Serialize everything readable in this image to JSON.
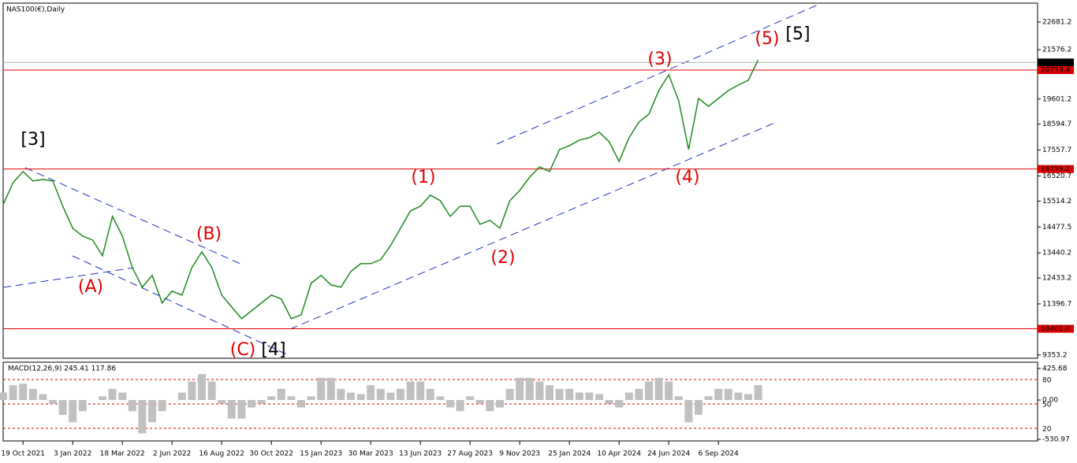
{
  "chart_data": [
    {
      "type": "line",
      "title": "NAS100(€),Daily",
      "categories": [
        null,
        null,
        "19 Oct 2021",
        null,
        null,
        null,
        null,
        "3 Jan 2022",
        null,
        null,
        null,
        null,
        "18 Mar 2022",
        null,
        null,
        null,
        null,
        "2 Jun 2022",
        null,
        null,
        null,
        null,
        "16 Aug 2022",
        null,
        null,
        null,
        null,
        "30 Oct 2022",
        null,
        null,
        null,
        null,
        "15 Jan 2023",
        null,
        null,
        null,
        null,
        "30 Mar 2023",
        null,
        null,
        null,
        null,
        "13 Jun 2023",
        null,
        null,
        null,
        null,
        "27 Aug 2023",
        null,
        null,
        null,
        null,
        "9 Nov 2023",
        null,
        null,
        null,
        null,
        "25 Jan 2024",
        null,
        null,
        null,
        null,
        "10 Apr 2024",
        null,
        null,
        null,
        null,
        "24 Jun 2024",
        null,
        null,
        null,
        null,
        "6 Sep 2024",
        null,
        null,
        null,
        null
      ],
      "series": [
        {
          "name": "NAS100",
          "color": "#1f8a1f",
          "values": [
            15373,
            16255,
            16696,
            16318,
            16381,
            16318,
            15310,
            14428,
            14113,
            13955,
            13325,
            14900,
            14113,
            12853,
            12065,
            12538,
            11435,
            11908,
            11750,
            12853,
            13483,
            12853,
            11750,
            11278,
            10805,
            11120,
            11435,
            11750,
            11593,
            10805,
            10963,
            12223,
            12538,
            12160,
            12065,
            12695,
            13010,
            13010,
            13168,
            13735,
            14428,
            15121,
            15310,
            15751,
            15530,
            14900,
            15310,
            15310,
            14585,
            14743,
            14428,
            15530,
            15940,
            16475,
            16885,
            16696,
            17578,
            17735,
            17956,
            18050,
            18271,
            17893,
            17105,
            18050,
            18680,
            18995,
            19940,
            20570,
            19531,
            17578,
            19625,
            19310,
            19625,
            19940,
            20161,
            20350,
            21169
          ]
        }
      ],
      "ylim": [
        9220,
        23440
      ],
      "yticks": [
        22681.2,
        21576.2,
        19601.2,
        18594.7,
        17557.7,
        16520.7,
        15514.2,
        14477.5,
        13440.2,
        12433.2,
        11396.7,
        9353.2
      ],
      "levels": [
        20759.4,
        16799.2,
        {
          "value": 10401,
          "label": "10401.0"
        }
      ],
      "level_color": "#e00000",
      "current_price": {
        "value": 21064,
        "label": "21064.0"
      },
      "annotations": [
        {
          "text": "[3]",
          "color": "#000000"
        },
        {
          "text": "(A)",
          "color": "#e00000"
        },
        {
          "text": "(B)",
          "color": "#e00000"
        },
        {
          "text": "(C)",
          "color": "#e00000"
        },
        {
          "text": "[4]",
          "color": "#000000"
        },
        {
          "text": "(1)",
          "color": "#e00000"
        },
        {
          "text": "(2)",
          "color": "#e00000"
        },
        {
          "text": "(3)",
          "color": "#e00000"
        },
        {
          "text": "(4)",
          "color": "#e00000"
        },
        {
          "text": "(5)",
          "color": "#e00000"
        },
        {
          "text": "[5]",
          "color": "#000000"
        }
      ]
    },
    {
      "type": "bar",
      "title": "MACD(12,26,9) 245.41 117.86",
      "color": "#c0c0c0",
      "values": [
        100,
        200,
        220,
        150,
        80,
        -50,
        -200,
        -300,
        -150,
        0,
        50,
        150,
        100,
        -150,
        -450,
        -300,
        -150,
        0,
        100,
        250,
        350,
        250,
        -50,
        -250,
        -250,
        -100,
        -50,
        50,
        150,
        50,
        -100,
        50,
        300,
        300,
        150,
        100,
        80,
        200,
        150,
        100,
        150,
        250,
        250,
        150,
        50,
        -100,
        -150,
        50,
        -50,
        -150,
        -100,
        150,
        300,
        300,
        250,
        200,
        150,
        150,
        100,
        100,
        80,
        -50,
        -100,
        100,
        150,
        250,
        300,
        250,
        50,
        -300,
        -200,
        50,
        150,
        150,
        100,
        80,
        200
      ],
      "ylim": [
        -552,
        510
      ],
      "yticks": [
        425.68,
        {
          "value": 0,
          "label": "0.00"
        },
        -530.97
      ],
      "y2lim": [
        4.5,
        101.3
      ],
      "y2ticks": [
        80,
        50,
        20
      ]
    }
  ]
}
